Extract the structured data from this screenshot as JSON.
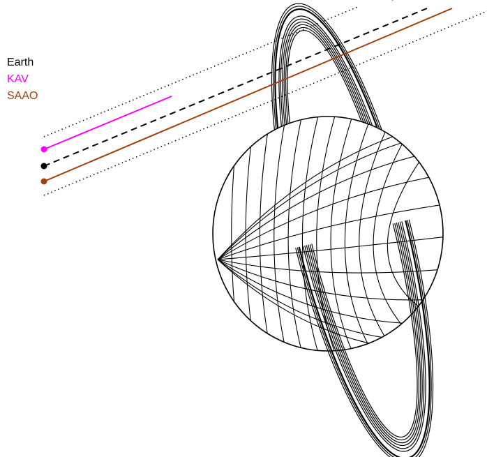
{
  "legend": [
    {
      "label": "Earth",
      "color": "#000000"
    },
    {
      "label": "KAV",
      "color": "#ff00ff"
    },
    {
      "label": "SAAO",
      "color": "#a0410d"
    }
  ],
  "colors": {
    "earth": "#000000",
    "kav": "#ff00ff",
    "saao": "#a0410d",
    "outline": "#000000",
    "background": "#ffffff"
  },
  "planet": {
    "grid_meridians": 12,
    "grid_parallels": 11,
    "ring_count": 9
  }
}
